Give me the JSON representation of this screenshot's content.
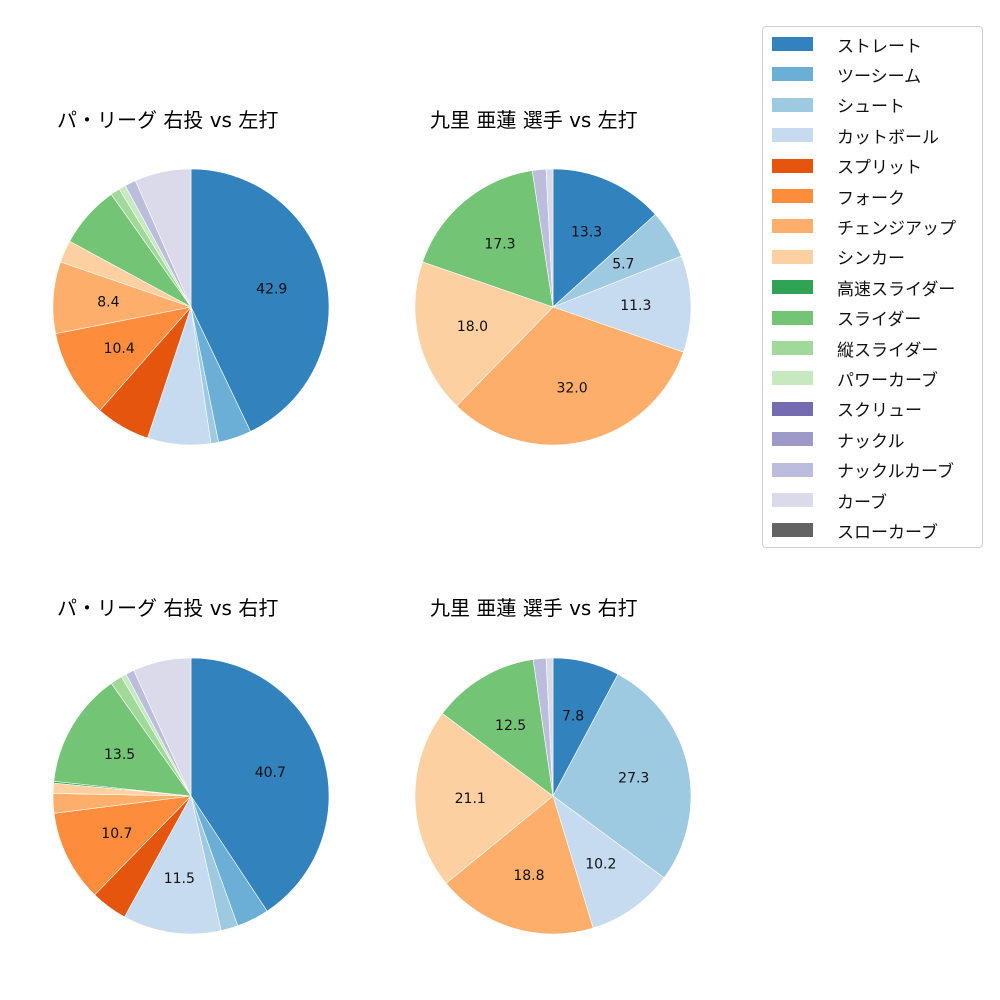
{
  "chart_data": [
    {
      "type": "pie",
      "title": "パ・リーグ 右投 vs 左打",
      "categories": [
        "ストレート",
        "ツーシーム",
        "シュート",
        "カットボール",
        "スプリット",
        "フォーク",
        "チェンジアップ",
        "シンカー",
        "スライダー",
        "縦スライダー",
        "パワーカーブ",
        "ナックルカーブ",
        "カーブ"
      ],
      "values": [
        42.9,
        3.9,
        0.9,
        7.4,
        6.4,
        10.4,
        8.4,
        2.6,
        7.3,
        1.1,
        0.8,
        1.3,
        6.6
      ],
      "labels_shown": [
        "42.9",
        "",
        "",
        "",
        "",
        "10.4",
        "8.4",
        "",
        "",
        "",
        "",
        "",
        ""
      ],
      "start_angle": 90,
      "direction": "clockwise"
    },
    {
      "type": "pie",
      "title": "九里 亜蓮 選手 vs 左打",
      "categories": [
        "ストレート",
        "シュート",
        "カットボール",
        "チェンジアップ",
        "シンカー",
        "スライダー",
        "ナックルカーブ",
        "カーブ"
      ],
      "values": [
        13.3,
        5.7,
        11.3,
        32.0,
        18.0,
        17.3,
        1.6,
        0.8
      ],
      "labels_shown": [
        "13.3",
        "5.7",
        "11.3",
        "32.0",
        "18.0",
        "17.3",
        "",
        ""
      ],
      "start_angle": 90,
      "direction": "clockwise"
    },
    {
      "type": "pie",
      "title": "パ・リーグ 右投 vs 右打",
      "categories": [
        "ストレート",
        "ツーシーム",
        "シュート",
        "カットボール",
        "スプリット",
        "フォーク",
        "チェンジアップ",
        "シンカー",
        "高速スライダー",
        "スライダー",
        "縦スライダー",
        "パワーカーブ",
        "ナックルカーブ",
        "カーブ"
      ],
      "values": [
        40.7,
        3.8,
        2.0,
        11.5,
        4.3,
        10.7,
        2.3,
        1.2,
        0.2,
        13.5,
        1.4,
        0.6,
        1.0,
        6.8
      ],
      "labels_shown": [
        "40.7",
        "",
        "",
        "11.5",
        "",
        "10.7",
        "",
        "",
        "",
        "13.5",
        "",
        "",
        "",
        ""
      ],
      "start_angle": 90,
      "direction": "clockwise"
    },
    {
      "type": "pie",
      "title": "九里 亜蓮 選手 vs 右打",
      "categories": [
        "ストレート",
        "シュート",
        "カットボール",
        "チェンジアップ",
        "シンカー",
        "スライダー",
        "ナックルカーブ",
        "カーブ"
      ],
      "values": [
        7.8,
        27.3,
        10.2,
        18.8,
        21.1,
        12.5,
        1.5,
        0.8
      ],
      "labels_shown": [
        "7.8",
        "27.3",
        "10.2",
        "18.8",
        "21.1",
        "12.5",
        "",
        ""
      ],
      "start_angle": 90,
      "direction": "clockwise"
    }
  ],
  "legend": {
    "position": "upper right",
    "items": [
      {
        "label": "ストレート",
        "color": "#3182bd"
      },
      {
        "label": "ツーシーム",
        "color": "#6baed6"
      },
      {
        "label": "シュート",
        "color": "#9ecae1"
      },
      {
        "label": "カットボール",
        "color": "#c6dbef"
      },
      {
        "label": "スプリット",
        "color": "#e6550d"
      },
      {
        "label": "フォーク",
        "color": "#fd8d3c"
      },
      {
        "label": "チェンジアップ",
        "color": "#fdae6b"
      },
      {
        "label": "シンカー",
        "color": "#fdd0a2"
      },
      {
        "label": "高速スライダー",
        "color": "#31a354"
      },
      {
        "label": "スライダー",
        "color": "#74c476"
      },
      {
        "label": "縦スライダー",
        "color": "#a1d99b"
      },
      {
        "label": "パワーカーブ",
        "color": "#c7e9c0"
      },
      {
        "label": "スクリュー",
        "color": "#756bb1"
      },
      {
        "label": "ナックル",
        "color": "#9e9ac8"
      },
      {
        "label": "ナックルカーブ",
        "color": "#bcbddc"
      },
      {
        "label": "カーブ",
        "color": "#dadaeb"
      },
      {
        "label": "スローカーブ",
        "color": "#636363"
      }
    ]
  },
  "titles": {
    "top_left": "パ・リーグ 右投 vs 左打",
    "top_right": "九里 亜蓮 選手 vs 左打",
    "bottom_left": "パ・リーグ 右投 vs 右打",
    "bottom_right": "九里 亜蓮 選手 vs 右打"
  }
}
